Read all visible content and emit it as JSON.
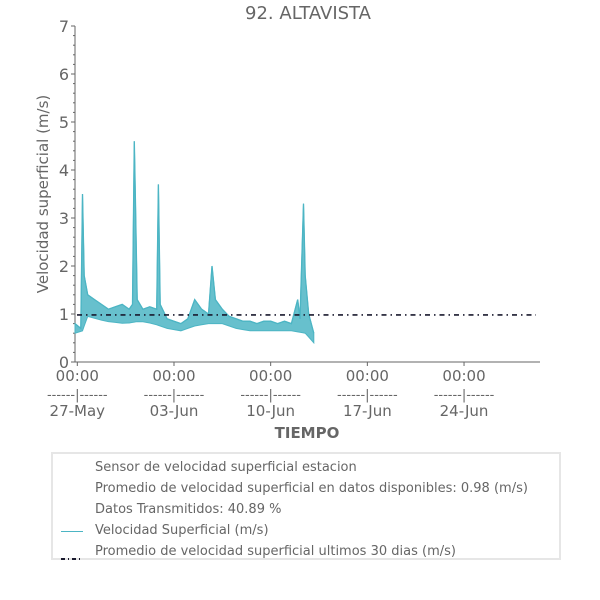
{
  "chart_data": {
    "type": "line",
    "title": "92. ALTAVISTA",
    "xlabel": "TIEMPO",
    "ylabel": "Velocidad superficial (m/s)",
    "ylim": [
      0,
      7
    ],
    "yticks": [
      "0",
      "1",
      "2",
      "3",
      "4",
      "5",
      "6",
      "7"
    ],
    "xlim": [
      "2023-05-26 20:00",
      "2023-06-29 12:00"
    ],
    "xticks": [
      {
        "time": "2023-05-27 00:00",
        "line1": "00:00",
        "line2": "------|------",
        "line3": "27-May"
      },
      {
        "time": "2023-06-03 00:00",
        "line1": "00:00",
        "line2": "------|------",
        "line3": "03-Jun"
      },
      {
        "time": "2023-06-10 00:00",
        "line1": "00:00",
        "line2": "------|------",
        "line3": "10-Jun"
      },
      {
        "time": "2023-06-17 00:00",
        "line1": "00:00",
        "line2": "------|------",
        "line3": "17-Jun"
      },
      {
        "time": "2023-06-24 00:00",
        "line1": "00:00",
        "line2": "------|------",
        "line3": "24-Jun"
      }
    ],
    "series": [
      {
        "name": "Velocidad Superficial (m/s)",
        "color": "#4cb5c4",
        "points": [
          [
            "2023-05-26 20:00",
            0.8
          ],
          [
            "2023-05-27 06:00",
            0.7
          ],
          [
            "2023-05-27 09:00",
            3.5
          ],
          [
            "2023-05-27 12:00",
            1.8
          ],
          [
            "2023-05-27 18:00",
            1.4
          ],
          [
            "2023-05-28 06:00",
            1.3
          ],
          [
            "2023-05-28 18:00",
            1.2
          ],
          [
            "2023-05-29 06:00",
            1.1
          ],
          [
            "2023-05-29 18:00",
            1.15
          ],
          [
            "2023-05-30 06:00",
            1.2
          ],
          [
            "2023-05-30 18:00",
            1.1
          ],
          [
            "2023-05-31 00:00",
            1.2
          ],
          [
            "2023-05-31 03:00",
            4.6
          ],
          [
            "2023-05-31 05:00",
            3.4
          ],
          [
            "2023-05-31 08:00",
            1.3
          ],
          [
            "2023-05-31 18:00",
            1.1
          ],
          [
            "2023-06-01 06:00",
            1.15
          ],
          [
            "2023-06-01 18:00",
            1.1
          ],
          [
            "2023-06-01 21:00",
            3.7
          ],
          [
            "2023-06-02 00:00",
            1.2
          ],
          [
            "2023-06-02 12:00",
            0.9
          ],
          [
            "2023-06-03 00:00",
            0.85
          ],
          [
            "2023-06-03 12:00",
            0.8
          ],
          [
            "2023-06-04 00:00",
            0.9
          ],
          [
            "2023-06-04 12:00",
            1.3
          ],
          [
            "2023-06-05 00:00",
            1.1
          ],
          [
            "2023-06-05 12:00",
            1.0
          ],
          [
            "2023-06-05 18:00",
            2.0
          ],
          [
            "2023-06-06 00:00",
            1.3
          ],
          [
            "2023-06-06 12:00",
            1.1
          ],
          [
            "2023-06-07 00:00",
            0.95
          ],
          [
            "2023-06-07 12:00",
            0.9
          ],
          [
            "2023-06-08 00:00",
            0.85
          ],
          [
            "2023-06-08 12:00",
            0.85
          ],
          [
            "2023-06-09 00:00",
            0.8
          ],
          [
            "2023-06-09 12:00",
            0.85
          ],
          [
            "2023-06-10 00:00",
            0.85
          ],
          [
            "2023-06-10 12:00",
            0.8
          ],
          [
            "2023-06-11 00:00",
            0.85
          ],
          [
            "2023-06-11 12:00",
            0.8
          ],
          [
            "2023-06-11 23:00",
            1.3
          ],
          [
            "2023-06-12 03:00",
            0.9
          ],
          [
            "2023-06-12 09:00",
            3.3
          ],
          [
            "2023-06-12 12:00",
            1.8
          ],
          [
            "2023-06-12 18:00",
            1.0
          ],
          [
            "2023-06-13 03:00",
            0.6
          ]
        ],
        "band_low": [
          [
            "2023-05-26 20:00",
            0.6
          ],
          [
            "2023-05-27 09:00",
            0.65
          ],
          [
            "2023-05-27 18:00",
            0.95
          ],
          [
            "2023-05-29 00:00",
            0.85
          ],
          [
            "2023-05-30 12:00",
            0.8
          ],
          [
            "2023-05-31 12:00",
            0.85
          ],
          [
            "2023-06-01 12:00",
            0.8
          ],
          [
            "2023-06-02 12:00",
            0.7
          ],
          [
            "2023-06-03 12:00",
            0.65
          ],
          [
            "2023-06-04 12:00",
            0.75
          ],
          [
            "2023-06-05 12:00",
            0.8
          ],
          [
            "2023-06-06 12:00",
            0.8
          ],
          [
            "2023-06-07 12:00",
            0.7
          ],
          [
            "2023-06-08 12:00",
            0.65
          ],
          [
            "2023-06-09 12:00",
            0.65
          ],
          [
            "2023-06-10 12:00",
            0.65
          ],
          [
            "2023-06-11 12:00",
            0.65
          ],
          [
            "2023-06-12 12:00",
            0.6
          ],
          [
            "2023-06-13 03:00",
            0.4
          ]
        ]
      },
      {
        "name": "Promedio de velocidad superficial ultimos 30 dias (m/s)",
        "color": "#1a1a2e",
        "style": "dash-dot",
        "value": 0.98
      }
    ],
    "legend": {
      "placement": "bottom",
      "entries": [
        {
          "text": "Sensor de velocidad superficial estacion",
          "swatch": "none"
        },
        {
          "text": "Promedio de velocidad superficial en datos disponibles: 0.98 (m/s)",
          "swatch": "none"
        },
        {
          "text": "Datos Transmitidos: 40.89 %",
          "swatch": "none"
        },
        {
          "text": "Velocidad Superficial (m/s)",
          "swatch": "line"
        },
        {
          "text": "Promedio de velocidad superficial ultimos 30 dias (m/s)",
          "swatch": "dashdot"
        }
      ]
    }
  }
}
